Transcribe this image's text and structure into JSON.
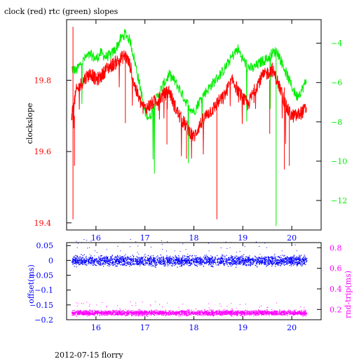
{
  "footer": "2012-07-15 florry",
  "colors": {
    "red": "#ff0000",
    "green": "#00ee00",
    "blue": "#0000ff",
    "magenta": "#ff00ff",
    "axis": "#000000"
  },
  "chart_data": [
    {
      "type": "line",
      "title": "clock (red) rtc (green) slopes",
      "xlabel": "",
      "ylabel": "clockslope",
      "xlim": [
        15.4,
        20.6
      ],
      "ylim": [
        19.38,
        19.97
      ],
      "y2lim": [
        -13.5,
        -2.8
      ],
      "x_ticks": [
        16,
        17,
        18,
        19,
        20
      ],
      "y_ticks": [
        19.4,
        19.6,
        19.8
      ],
      "y2_ticks": [
        -12,
        -10,
        -8,
        -6,
        -4
      ],
      "grid": false,
      "series": [
        {
          "name": "clock",
          "axis": "left",
          "x": [
            15.5,
            15.6,
            15.7,
            15.8,
            15.9,
            16.0,
            16.1,
            16.2,
            16.3,
            16.4,
            16.5,
            16.6,
            16.7,
            16.8,
            16.9,
            17.0,
            17.1,
            17.2,
            17.3,
            17.4,
            17.5,
            17.6,
            17.7,
            17.8,
            17.9,
            18.0,
            18.1,
            18.2,
            18.3,
            18.4,
            18.5,
            18.6,
            18.7,
            18.8,
            18.9,
            19.0,
            19.1,
            19.2,
            19.3,
            19.4,
            19.5,
            19.6,
            19.7,
            19.8,
            19.9,
            20.0,
            20.1,
            20.2,
            20.3
          ],
          "values": [
            19.7,
            19.77,
            19.79,
            19.81,
            19.82,
            19.8,
            19.81,
            19.83,
            19.84,
            19.85,
            19.86,
            19.87,
            19.84,
            19.78,
            19.74,
            19.72,
            19.73,
            19.74,
            19.75,
            19.76,
            19.77,
            19.73,
            19.7,
            19.68,
            19.66,
            19.64,
            19.67,
            19.69,
            19.71,
            19.72,
            19.74,
            19.75,
            19.78,
            19.8,
            19.77,
            19.75,
            19.73,
            19.76,
            19.79,
            19.81,
            19.82,
            19.83,
            19.8,
            19.76,
            19.72,
            19.7,
            19.7,
            19.71,
            19.72
          ]
        },
        {
          "name": "rtc",
          "axis": "right",
          "x": [
            15.5,
            15.6,
            15.7,
            15.8,
            15.9,
            16.0,
            16.1,
            16.2,
            16.3,
            16.4,
            16.5,
            16.6,
            16.7,
            16.8,
            16.9,
            17.0,
            17.1,
            17.2,
            17.3,
            17.4,
            17.5,
            17.6,
            17.7,
            17.8,
            17.9,
            18.0,
            18.1,
            18.2,
            18.3,
            18.4,
            18.5,
            18.6,
            18.7,
            18.8,
            18.9,
            19.0,
            19.1,
            19.2,
            19.3,
            19.4,
            19.5,
            19.6,
            19.7,
            19.8,
            19.9,
            20.0,
            20.1,
            20.2,
            20.3
          ],
          "values": [
            -5.3,
            -5.4,
            -5.0,
            -4.7,
            -4.6,
            -4.8,
            -4.5,
            -4.7,
            -4.6,
            -4.3,
            -3.8,
            -3.5,
            -3.9,
            -5.0,
            -6.2,
            -7.5,
            -7.8,
            -7.0,
            -6.5,
            -6.0,
            -5.6,
            -5.9,
            -6.3,
            -6.8,
            -7.2,
            -7.5,
            -7.0,
            -6.6,
            -6.3,
            -6.0,
            -5.7,
            -5.4,
            -5.0,
            -4.6,
            -4.3,
            -4.8,
            -5.2,
            -5.3,
            -5.1,
            -4.9,
            -4.8,
            -4.5,
            -4.4,
            -5.0,
            -5.6,
            -6.2,
            -6.7,
            -6.4,
            -5.9
          ]
        }
      ]
    },
    {
      "type": "scatter",
      "title": "",
      "xlabel": "",
      "ylabel": "offset(ms)",
      "y2label": "rnd-trip(ms)",
      "xlim": [
        15.4,
        20.6
      ],
      "ylim": [
        -0.2,
        0.06
      ],
      "y2lim": [
        0.1,
        0.85
      ],
      "x_ticks": [
        16,
        17,
        18,
        19,
        20
      ],
      "y_ticks": [
        0.05,
        0,
        -0.05,
        -0.1,
        -0.15,
        -0.2
      ],
      "y_tick_labels": [
        "0.05",
        "0",
        "−0.05",
        "−0.1",
        "−0.15",
        "−0.2"
      ],
      "y2_ticks": [
        0.2,
        0.4,
        0.6,
        0.8
      ],
      "grid": false,
      "series": [
        {
          "name": "offset",
          "axis": "left",
          "x_range": [
            15.5,
            20.3
          ],
          "mean": 0.0,
          "spread": 0.008
        },
        {
          "name": "rnd-trip",
          "axis": "right",
          "x_range": [
            15.5,
            20.3
          ],
          "mean": 0.17,
          "spread": 0.012
        }
      ]
    }
  ]
}
